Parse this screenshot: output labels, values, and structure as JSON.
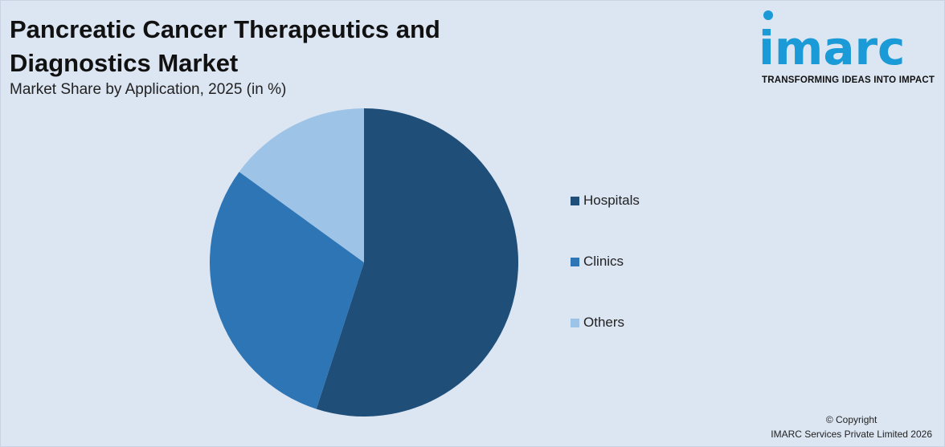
{
  "header": {
    "title": "Pancreatic Cancer Therapeutics and Diagnostics Market",
    "subtitle": "Market Share by Application, 2025 (in %)"
  },
  "logo": {
    "wordmark": "imarc",
    "tagline": "TRANSFORMING IDEAS INTO IMPACT",
    "color": "#1a9ad6"
  },
  "footer": {
    "copyright": "© Copyright",
    "company": "IMARC Services Private Limited 2026"
  },
  "chart_data": {
    "type": "pie",
    "title": "Pancreatic Cancer Therapeutics and Diagnostics Market",
    "subtitle": "Market Share by Application, 2025 (in %)",
    "legend_position": "right",
    "slices": [
      {
        "label": "Hospitals",
        "value": 55,
        "color": "#1f4e79"
      },
      {
        "label": "Clinics",
        "value": 30,
        "color": "#2e75b6"
      },
      {
        "label": "Others",
        "value": 15,
        "color": "#9dc3e6"
      }
    ]
  }
}
